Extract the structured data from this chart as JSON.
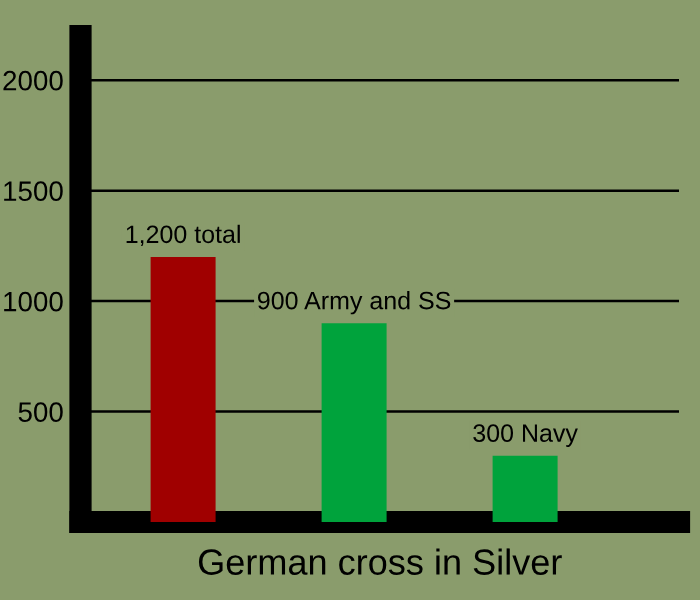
{
  "chart_data": {
    "type": "bar",
    "xlabel": "German cross in Silver",
    "categories": [
      null,
      null,
      null
    ],
    "values": [
      1200,
      900,
      300
    ],
    "colors": [
      "#a00000",
      "#00a33c",
      "#00a33c"
    ],
    "value_labels": [
      "1,200 total",
      "900 Army and SS",
      "300 Navy"
    ],
    "ylim": [
      0,
      2200
    ],
    "yticks": [
      500,
      1000,
      1500,
      2000
    ],
    "grid": "y"
  }
}
